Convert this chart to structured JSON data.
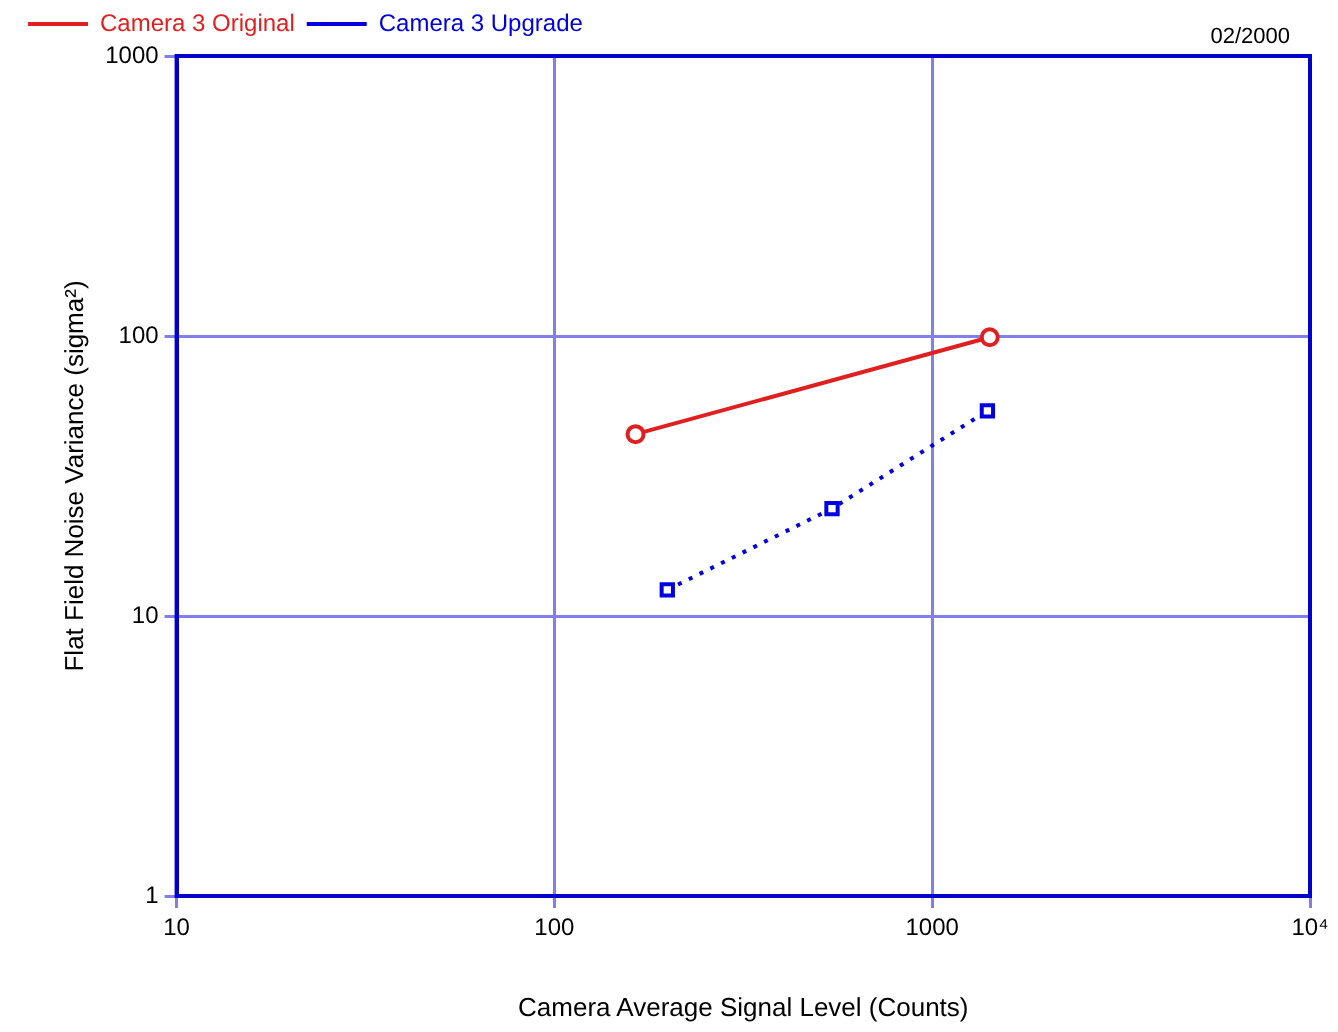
{
  "chart_data": {
    "type": "line",
    "xlabel": "Camera Average Signal Level (Counts)",
    "ylabel": "Flat Field Noise Variance (sigma²)",
    "annotations": [
      "02/2000"
    ],
    "log": "xy",
    "xlim": [
      10,
      10000
    ],
    "xticks": [
      10,
      100,
      1000,
      {
        "value": 10000,
        "label": "10⁴"
      }
    ],
    "ylim": [
      1,
      1000
    ],
    "yticks": [
      1,
      10,
      100,
      1000
    ],
    "grid": true,
    "legend": "top left",
    "series": [
      {
        "name": "Camera 3 Original",
        "color": "#e02020",
        "x": [
          164,
          1420
        ],
        "values": [
          44.6,
          99
        ],
        "marker": "circle",
        "line_style": "solid"
      },
      {
        "name": "Camera 3 Upgrade",
        "color": "#0000e0",
        "x": [
          199,
          543,
          1400
        ],
        "values": [
          12.4,
          24.2,
          54
        ],
        "marker": "square",
        "line_style": "dotted"
      }
    ]
  }
}
